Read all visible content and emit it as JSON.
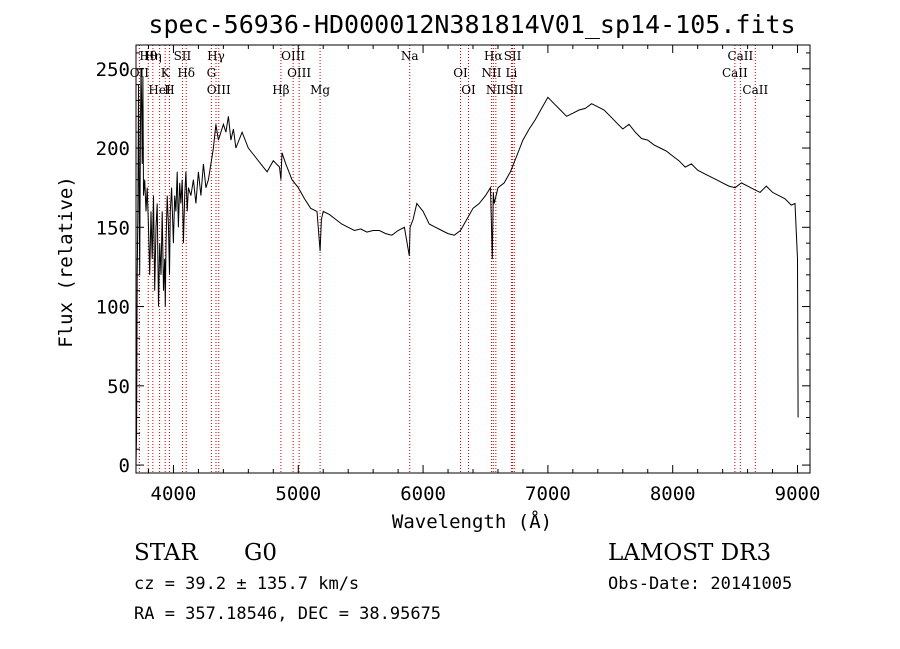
{
  "chart_data": {
    "type": "line",
    "title": "spec-56936-HD000012N381814V01_sp14-105.fits",
    "xlabel": "Wavelength (Å)",
    "ylabel": "Flux (relative)",
    "xlim": [
      3700,
      9100
    ],
    "ylim": [
      -5,
      265
    ],
    "x_ticks": [
      4000,
      5000,
      6000,
      7000,
      8000,
      9000
    ],
    "y_ticks": [
      0,
      50,
      100,
      150,
      200,
      250
    ],
    "series": [
      {
        "name": "flux",
        "x": [
          3700,
          3705,
          3710,
          3715,
          3720,
          3725,
          3730,
          3735,
          3740,
          3745,
          3750,
          3755,
          3760,
          3770,
          3780,
          3790,
          3800,
          3810,
          3820,
          3830,
          3840,
          3850,
          3860,
          3870,
          3880,
          3890,
          3900,
          3910,
          3920,
          3930,
          3935,
          3940,
          3950,
          3960,
          3968,
          3975,
          3985,
          4000,
          4010,
          4020,
          4030,
          4040,
          4050,
          4060,
          4070,
          4080,
          4090,
          4100,
          4110,
          4120,
          4140,
          4160,
          4180,
          4200,
          4220,
          4240,
          4260,
          4280,
          4300,
          4320,
          4340,
          4360,
          4380,
          4400,
          4420,
          4440,
          4460,
          4480,
          4500,
          4550,
          4600,
          4650,
          4700,
          4750,
          4800,
          4850,
          4861,
          4870,
          4900,
          4950,
          5000,
          5050,
          5100,
          5150,
          5175,
          5185,
          5200,
          5250,
          5300,
          5350,
          5400,
          5450,
          5500,
          5550,
          5600,
          5650,
          5700,
          5750,
          5800,
          5850,
          5890,
          5896,
          5920,
          5950,
          6000,
          6050,
          6100,
          6150,
          6200,
          6250,
          6300,
          6350,
          6400,
          6450,
          6500,
          6540,
          6555,
          6563,
          6570,
          6600,
          6650,
          6700,
          6750,
          6800,
          6850,
          6900,
          6950,
          7000,
          7050,
          7100,
          7150,
          7200,
          7250,
          7300,
          7350,
          7400,
          7450,
          7500,
          7550,
          7600,
          7650,
          7700,
          7750,
          7800,
          7850,
          7900,
          7950,
          8000,
          8050,
          8100,
          8150,
          8200,
          8250,
          8300,
          8350,
          8400,
          8450,
          8500,
          8550,
          8600,
          8650,
          8700,
          8750,
          8800,
          8850,
          8900,
          8950,
          8980,
          9000,
          9005
        ],
        "y": [
          0,
          20,
          120,
          160,
          240,
          180,
          120,
          210,
          250,
          230,
          190,
          245,
          170,
          180,
          160,
          175,
          150,
          120,
          160,
          130,
          170,
          110,
          150,
          165,
          100,
          140,
          120,
          160,
          110,
          130,
          100,
          140,
          170,
          150,
          120,
          160,
          175,
          140,
          170,
          160,
          185,
          150,
          178,
          165,
          180,
          140,
          170,
          185,
          160,
          175,
          170,
          180,
          165,
          185,
          170,
          190,
          175,
          180,
          190,
          200,
          215,
          205,
          210,
          215,
          210,
          220,
          205,
          212,
          200,
          210,
          200,
          195,
          190,
          185,
          192,
          188,
          180,
          197,
          190,
          180,
          175,
          168,
          162,
          160,
          135,
          155,
          160,
          158,
          155,
          152,
          150,
          148,
          149,
          147,
          148,
          148,
          146,
          145,
          148,
          150,
          132,
          150,
          155,
          165,
          160,
          152,
          150,
          148,
          146,
          145,
          148,
          155,
          162,
          165,
          170,
          175,
          130,
          172,
          165,
          175,
          178,
          185,
          195,
          205,
          212,
          218,
          225,
          232,
          228,
          224,
          220,
          222,
          224,
          225,
          228,
          226,
          224,
          220,
          216,
          212,
          215,
          210,
          206,
          205,
          202,
          200,
          198,
          195,
          192,
          188,
          190,
          186,
          184,
          182,
          180,
          178,
          176,
          175,
          178,
          176,
          174,
          172,
          176,
          172,
          170,
          168,
          164,
          165,
          130,
          30
        ]
      }
    ],
    "spectral_lines": [
      {
        "name": "Hθ",
        "wavelength": 3798
      },
      {
        "name": "OII",
        "wavelength": 3727
      },
      {
        "name": "HeI",
        "wavelength": 3889
      },
      {
        "name": "Hη",
        "wavelength": 3835
      },
      {
        "name": "K",
        "wavelength": 3934
      },
      {
        "name": "H",
        "wavelength": 3968
      },
      {
        "name": "SII",
        "wavelength": 4072
      },
      {
        "name": "Hδ",
        "wavelength": 4102
      },
      {
        "name": "OIII",
        "wavelength": 4363
      },
      {
        "name": "Hγ",
        "wavelength": 4341
      },
      {
        "name": "G",
        "wavelength": 4304
      },
      {
        "name": "Hβ",
        "wavelength": 4861
      },
      {
        "name": "OIII",
        "wavelength": 4959
      },
      {
        "name": "OIII",
        "wavelength": 5007
      },
      {
        "name": "Mg",
        "wavelength": 5175
      },
      {
        "name": "Na",
        "wavelength": 5893
      },
      {
        "name": "OI",
        "wavelength": 6300
      },
      {
        "name": "OI",
        "wavelength": 6364
      },
      {
        "name": "Hα",
        "wavelength": 6563
      },
      {
        "name": "NII",
        "wavelength": 6548
      },
      {
        "name": "NII",
        "wavelength": 6583
      },
      {
        "name": "SII",
        "wavelength": 6717
      },
      {
        "name": "Li",
        "wavelength": 6708
      },
      {
        "name": "SII",
        "wavelength": 6731
      },
      {
        "name": "CaII",
        "wavelength": 8542
      },
      {
        "name": "CaII",
        "wavelength": 8498
      },
      {
        "name": "CaII",
        "wavelength": 8662
      }
    ]
  },
  "info": {
    "object_class": "STAR",
    "subclass": "G0",
    "survey": "LAMOST DR3",
    "cz": "cz = 39.2 ± 135.7 km/s",
    "obs_date": "Obs-Date: 20141005",
    "coords": "RA = 357.18546, DEC =  38.95675"
  }
}
